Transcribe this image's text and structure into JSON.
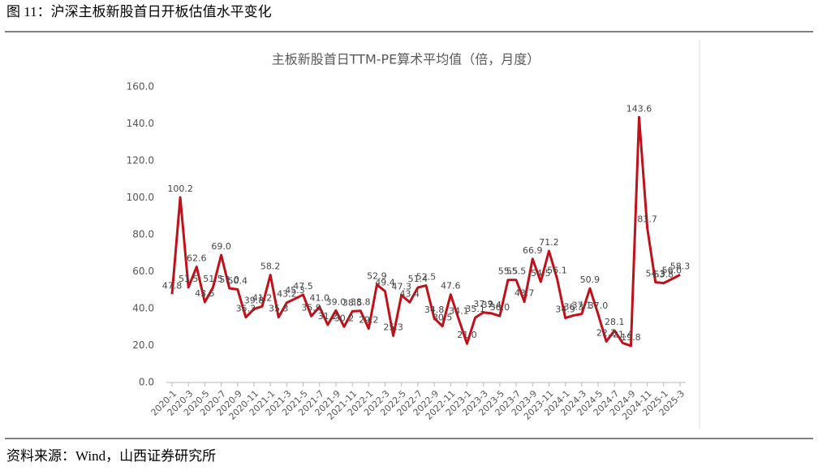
{
  "figure_title": "图 11：沪深主板新股首日开板估值水平变化",
  "source": "资料来源：Wind，山西证券研究所",
  "chart_data": {
    "type": "line",
    "title": "主板新股首日TTM-PE算术平均值（倍，月度）",
    "categories": [
      "2020-1",
      null,
      "2020-3",
      null,
      "2020-5",
      null,
      "2020-7",
      null,
      "2020-9",
      null,
      "2020-11",
      null,
      "2021-1",
      null,
      "2021-3",
      null,
      "2021-5",
      null,
      "2021-7",
      null,
      "2021-9",
      null,
      "2021-11",
      null,
      "2022-1",
      null,
      "2022-3",
      null,
      "2022-5",
      null,
      "2022-7",
      null,
      "2022-9",
      null,
      "2022-11",
      null,
      "2023-1",
      null,
      "2023-3",
      null,
      "2023-5",
      null,
      "2023-7",
      null,
      "2023-9",
      null,
      "2023-11",
      null,
      "2024-1",
      null,
      "2024-3",
      null,
      "2024-5",
      null,
      "2024-7",
      null,
      "2024-9",
      null,
      "2024-11",
      null,
      "2025-1",
      null,
      "2025-3"
    ],
    "series": [
      {
        "name": "主板新股首日TTM-PE算术平均值",
        "color": "#c0101a",
        "values": [
          47.8,
          100.2,
          51.5,
          62.6,
          43.5,
          51.5,
          69.0,
          51.0,
          50.4,
          35.3,
          39.8,
          41.2,
          58.2,
          35.3,
          43.2,
          45.3,
          47.5,
          35.9,
          41.0,
          31.2,
          39.0,
          30.2,
          38.5,
          38.8,
          29.2,
          52.9,
          49.4,
          25.3,
          47.3,
          43.4,
          51.4,
          52.5,
          34.8,
          30.5,
          47.6,
          34.1,
          21.0,
          35.1,
          37.9,
          37.4,
          36.0,
          55.5,
          55.5,
          43.7,
          66.9,
          54.5,
          71.2,
          56.1,
          34.9,
          36.3,
          37.1,
          50.9,
          37.0,
          22.2,
          28.1,
          21.4,
          19.8,
          143.6,
          83.7,
          54.3,
          53.8,
          56.0,
          58.3
        ],
        "value_labels": [
          "47.8",
          "100.2",
          "51.5",
          "62.6",
          "43.5",
          "51.5",
          "69.0",
          "51.0",
          "50.4",
          "35.3",
          "39.8",
          "41.2",
          "58.2",
          "35.3",
          "43.2",
          "45.3",
          "47.5",
          "35.9",
          "41.0",
          "31.2",
          "39.0",
          "30.2",
          "38.5",
          "38.8",
          "29.2",
          "52.9",
          "49.4",
          "25.3",
          "47.3",
          "43.4",
          "51.4",
          "52.5",
          "34.8",
          "30.5",
          "47.6",
          "34.1",
          "21.0",
          "35.1",
          "37.9",
          "37.4",
          "36.0",
          "55.5",
          "55.5",
          "43.7",
          "66.9",
          "54.5",
          "71.2",
          "56.1",
          "34.9",
          "36.3",
          "37.1",
          "50.9",
          "37.0",
          "22.2",
          "28.1",
          "21.4",
          "19.8",
          "143.6",
          "83.7",
          "54.3",
          "53.8",
          "56.0",
          "58.3"
        ]
      }
    ],
    "ylim": [
      0,
      160
    ],
    "yticks": [
      {
        "value": 0,
        "label": "0.0"
      },
      {
        "value": 20,
        "label": "20.0"
      },
      {
        "value": 40,
        "label": "40.0"
      },
      {
        "value": 60,
        "label": "60.0"
      },
      {
        "value": 80,
        "label": "80.0"
      },
      {
        "value": 100,
        "label": "100.0"
      },
      {
        "value": 120,
        "label": "120.0"
      },
      {
        "value": 140,
        "label": "140.0"
      },
      {
        "value": 160,
        "label": "160.0"
      }
    ],
    "grid": false
  }
}
